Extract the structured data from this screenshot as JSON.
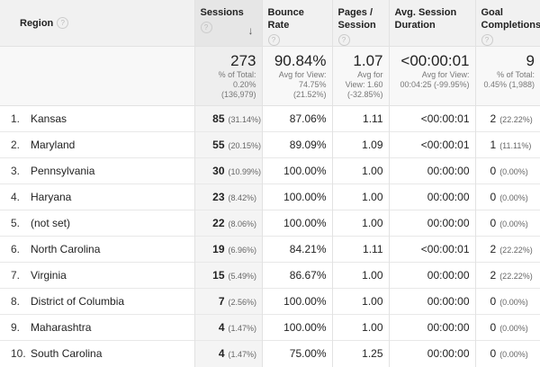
{
  "headers": {
    "region": "Region",
    "sessions": "Sessions",
    "bounce_rate": "Bounce Rate",
    "pages_session": "Pages / Session",
    "avg_duration": "Avg. Session Duration",
    "goal_completions": "Goal Completions",
    "help_glyph": "?",
    "sort_glyph": "↓"
  },
  "totals": {
    "sessions": {
      "value": "273",
      "l1": "% of Total:",
      "l2": "0.20%",
      "l3": "(136,979)"
    },
    "bounce_rate": {
      "value": "90.84%",
      "l1": "Avg for View:",
      "l2": "74.75%",
      "l3": "(21.52%)"
    },
    "pages_session": {
      "value": "1.07",
      "l1": "Avg for",
      "l2": "View: 1.60",
      "l3": "(-32.85%)"
    },
    "avg_duration": {
      "value": "<00:00:01",
      "l1": "Avg for View:",
      "l2": "00:04:25 (-99.95%)"
    },
    "goal_completions": {
      "value": "9",
      "l1": "% of Total:",
      "l2": "0.45% (1,988)"
    }
  },
  "rows": [
    {
      "idx": "1.",
      "region": "Kansas",
      "sessions": "85",
      "sessions_pct": "(31.14%)",
      "bounce": "87.06%",
      "pages": "1.11",
      "duration": "<00:00:01",
      "goals": "2",
      "goals_pct": "(22.22%)"
    },
    {
      "idx": "2.",
      "region": "Maryland",
      "sessions": "55",
      "sessions_pct": "(20.15%)",
      "bounce": "89.09%",
      "pages": "1.09",
      "duration": "<00:00:01",
      "goals": "1",
      "goals_pct": "(11.11%)"
    },
    {
      "idx": "3.",
      "region": "Pennsylvania",
      "sessions": "30",
      "sessions_pct": "(10.99%)",
      "bounce": "100.00%",
      "pages": "1.00",
      "duration": "00:00:00",
      "goals": "0",
      "goals_pct": "(0.00%)"
    },
    {
      "idx": "4.",
      "region": "Haryana",
      "sessions": "23",
      "sessions_pct": "(8.42%)",
      "bounce": "100.00%",
      "pages": "1.00",
      "duration": "00:00:00",
      "goals": "0",
      "goals_pct": "(0.00%)"
    },
    {
      "idx": "5.",
      "region": "(not set)",
      "sessions": "22",
      "sessions_pct": "(8.06%)",
      "bounce": "100.00%",
      "pages": "1.00",
      "duration": "00:00:00",
      "goals": "0",
      "goals_pct": "(0.00%)"
    },
    {
      "idx": "6.",
      "region": "North Carolina",
      "sessions": "19",
      "sessions_pct": "(6.96%)",
      "bounce": "84.21%",
      "pages": "1.11",
      "duration": "<00:00:01",
      "goals": "2",
      "goals_pct": "(22.22%)"
    },
    {
      "idx": "7.",
      "region": "Virginia",
      "sessions": "15",
      "sessions_pct": "(5.49%)",
      "bounce": "86.67%",
      "pages": "1.00",
      "duration": "00:00:00",
      "goals": "2",
      "goals_pct": "(22.22%)"
    },
    {
      "idx": "8.",
      "region": "District of Columbia",
      "sessions": "7",
      "sessions_pct": "(2.56%)",
      "bounce": "100.00%",
      "pages": "1.00",
      "duration": "00:00:00",
      "goals": "0",
      "goals_pct": "(0.00%)"
    },
    {
      "idx": "9.",
      "region": "Maharashtra",
      "sessions": "4",
      "sessions_pct": "(1.47%)",
      "bounce": "100.00%",
      "pages": "1.00",
      "duration": "00:00:00",
      "goals": "0",
      "goals_pct": "(0.00%)"
    },
    {
      "idx": "10.",
      "region": "South Carolina",
      "sessions": "4",
      "sessions_pct": "(1.47%)",
      "bounce": "75.00%",
      "pages": "1.25",
      "duration": "00:00:00",
      "goals": "0",
      "goals_pct": "(0.00%)"
    }
  ]
}
